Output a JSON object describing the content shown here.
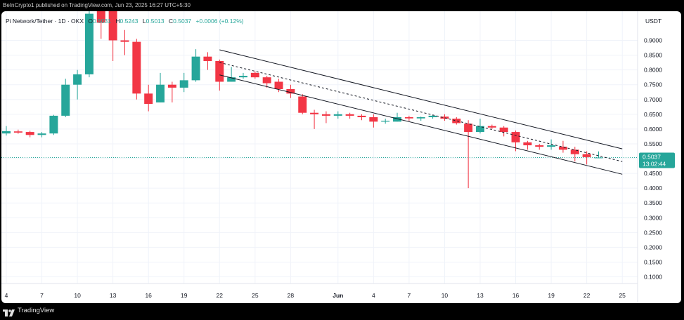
{
  "attribution": "BeInCrypto1 published on TradingView.com, Jun 23, 2025 16:27 UTC+5:30",
  "legend": {
    "symbol": "Pi Network/Tether · 1D · OKX",
    "o_label": "O",
    "o_value": "0.5031",
    "h_label": "H",
    "h_value": "0.5243",
    "l_label": "L",
    "l_value": "0.5013",
    "c_label": "C",
    "c_value": "0.5037",
    "change": "+0.0006 (+0.12%)"
  },
  "currency": "USDT",
  "price_tag": {
    "price": "0.5037",
    "countdown": "13:02:44"
  },
  "footer": {
    "brand": "TradingView",
    "logo_icon": "tradingview-logo-icon"
  },
  "colors": {
    "up": "#26a69a",
    "down": "#f23645",
    "grid": "#f0f3fa",
    "axis_text": "#131722",
    "tag": "#26a69a"
  },
  "chart_data": {
    "type": "candlestick",
    "title": "",
    "xlabel": "",
    "ylabel": "",
    "ylim": [
      0.06,
      1.0
    ],
    "grid": true,
    "y_ticks": [
      "0.9000",
      "0.8500",
      "0.8000",
      "0.7500",
      "0.7000",
      "0.6500",
      "0.6000",
      "0.5500",
      "0.5000",
      "0.4500",
      "0.4000",
      "0.3500",
      "0.3000",
      "0.2500",
      "0.2000",
      "0.1500",
      "0.1000"
    ],
    "x_ticks": [
      {
        "label": "4",
        "i": 0
      },
      {
        "label": "7",
        "i": 3
      },
      {
        "label": "10",
        "i": 6
      },
      {
        "label": "13",
        "i": 9
      },
      {
        "label": "16",
        "i": 12
      },
      {
        "label": "19",
        "i": 15
      },
      {
        "label": "22",
        "i": 18
      },
      {
        "label": "25",
        "i": 21
      },
      {
        "label": "28",
        "i": 24
      },
      {
        "label": "Jun",
        "i": 28
      },
      {
        "label": "4",
        "i": 31
      },
      {
        "label": "7",
        "i": 34
      },
      {
        "label": "10",
        "i": 37
      },
      {
        "label": "13",
        "i": 40
      },
      {
        "label": "16",
        "i": 43
      },
      {
        "label": "19",
        "i": 46
      },
      {
        "label": "22",
        "i": 49
      },
      {
        "label": "25",
        "i": 52
      }
    ],
    "candles": [
      {
        "o": 0.585,
        "h": 0.61,
        "l": 0.578,
        "c": 0.593
      },
      {
        "o": 0.592,
        "h": 0.598,
        "l": 0.584,
        "c": 0.588
      },
      {
        "o": 0.59,
        "h": 0.594,
        "l": 0.572,
        "c": 0.58
      },
      {
        "o": 0.58,
        "h": 0.59,
        "l": 0.572,
        "c": 0.585
      },
      {
        "o": 0.585,
        "h": 0.648,
        "l": 0.58,
        "c": 0.645
      },
      {
        "o": 0.645,
        "h": 0.77,
        "l": 0.64,
        "c": 0.75
      },
      {
        "o": 0.75,
        "h": 0.8,
        "l": 0.7,
        "c": 0.785
      },
      {
        "o": 0.785,
        "h": 1.0,
        "l": 0.775,
        "c": 0.99
      },
      {
        "o": 1.0,
        "h": 1.0,
        "l": 0.905,
        "c": 0.96
      },
      {
        "o": 1.0,
        "h": 1.0,
        "l": 0.83,
        "c": 0.9
      },
      {
        "o": 0.9,
        "h": 0.935,
        "l": 0.85,
        "c": 0.895
      },
      {
        "o": 0.895,
        "h": 0.905,
        "l": 0.7,
        "c": 0.72
      },
      {
        "o": 0.72,
        "h": 0.75,
        "l": 0.66,
        "c": 0.685
      },
      {
        "o": 0.69,
        "h": 0.79,
        "l": 0.69,
        "c": 0.75
      },
      {
        "o": 0.75,
        "h": 0.76,
        "l": 0.69,
        "c": 0.74
      },
      {
        "o": 0.74,
        "h": 0.79,
        "l": 0.725,
        "c": 0.765
      },
      {
        "o": 0.765,
        "h": 0.87,
        "l": 0.76,
        "c": 0.845
      },
      {
        "o": 0.845,
        "h": 0.86,
        "l": 0.8,
        "c": 0.83
      },
      {
        "o": 0.83,
        "h": 0.835,
        "l": 0.73,
        "c": 0.76
      },
      {
        "o": 0.76,
        "h": 0.81,
        "l": 0.76,
        "c": 0.775
      },
      {
        "o": 0.775,
        "h": 0.79,
        "l": 0.77,
        "c": 0.78
      },
      {
        "o": 0.79,
        "h": 0.795,
        "l": 0.77,
        "c": 0.775
      },
      {
        "o": 0.775,
        "h": 0.78,
        "l": 0.74,
        "c": 0.755
      },
      {
        "o": 0.76,
        "h": 0.77,
        "l": 0.725,
        "c": 0.735
      },
      {
        "o": 0.735,
        "h": 0.75,
        "l": 0.705,
        "c": 0.72
      },
      {
        "o": 0.71,
        "h": 0.718,
        "l": 0.65,
        "c": 0.655
      },
      {
        "o": 0.655,
        "h": 0.665,
        "l": 0.6,
        "c": 0.65
      },
      {
        "o": 0.65,
        "h": 0.66,
        "l": 0.62,
        "c": 0.645
      },
      {
        "o": 0.645,
        "h": 0.66,
        "l": 0.635,
        "c": 0.65
      },
      {
        "o": 0.65,
        "h": 0.655,
        "l": 0.635,
        "c": 0.645
      },
      {
        "o": 0.645,
        "h": 0.65,
        "l": 0.63,
        "c": 0.64
      },
      {
        "o": 0.64,
        "h": 0.65,
        "l": 0.605,
        "c": 0.625
      },
      {
        "o": 0.625,
        "h": 0.635,
        "l": 0.618,
        "c": 0.628
      },
      {
        "o": 0.625,
        "h": 0.655,
        "l": 0.625,
        "c": 0.64
      },
      {
        "o": 0.64,
        "h": 0.645,
        "l": 0.628,
        "c": 0.636
      },
      {
        "o": 0.636,
        "h": 0.642,
        "l": 0.628,
        "c": 0.64
      },
      {
        "o": 0.64,
        "h": 0.648,
        "l": 0.635,
        "c": 0.645
      },
      {
        "o": 0.642,
        "h": 0.65,
        "l": 0.628,
        "c": 0.635
      },
      {
        "o": 0.635,
        "h": 0.64,
        "l": 0.615,
        "c": 0.62
      },
      {
        "o": 0.618,
        "h": 0.63,
        "l": 0.4,
        "c": 0.59
      },
      {
        "o": 0.59,
        "h": 0.635,
        "l": 0.585,
        "c": 0.61
      },
      {
        "o": 0.61,
        "h": 0.615,
        "l": 0.6,
        "c": 0.605
      },
      {
        "o": 0.605,
        "h": 0.61,
        "l": 0.575,
        "c": 0.59
      },
      {
        "o": 0.59,
        "h": 0.595,
        "l": 0.525,
        "c": 0.555
      },
      {
        "o": 0.555,
        "h": 0.56,
        "l": 0.53,
        "c": 0.545
      },
      {
        "o": 0.545,
        "h": 0.55,
        "l": 0.53,
        "c": 0.54
      },
      {
        "o": 0.54,
        "h": 0.565,
        "l": 0.53,
        "c": 0.545
      },
      {
        "o": 0.54,
        "h": 0.56,
        "l": 0.52,
        "c": 0.53
      },
      {
        "o": 0.53,
        "h": 0.54,
        "l": 0.49,
        "c": 0.515
      },
      {
        "o": 0.515,
        "h": 0.525,
        "l": 0.48,
        "c": 0.505
      },
      {
        "o": 0.5031,
        "h": 0.5243,
        "l": 0.5013,
        "c": 0.5037
      }
    ],
    "channel": {
      "upper": [
        {
          "i": 18,
          "v": 0.868
        },
        {
          "i": 52,
          "v": 0.533
        }
      ],
      "lower": [
        {
          "i": 18,
          "v": 0.783
        },
        {
          "i": 52,
          "v": 0.447
        }
      ],
      "mid": [
        {
          "i": 18,
          "v": 0.825
        },
        {
          "i": 52,
          "v": 0.49
        }
      ]
    },
    "last_price": 0.5037
  }
}
